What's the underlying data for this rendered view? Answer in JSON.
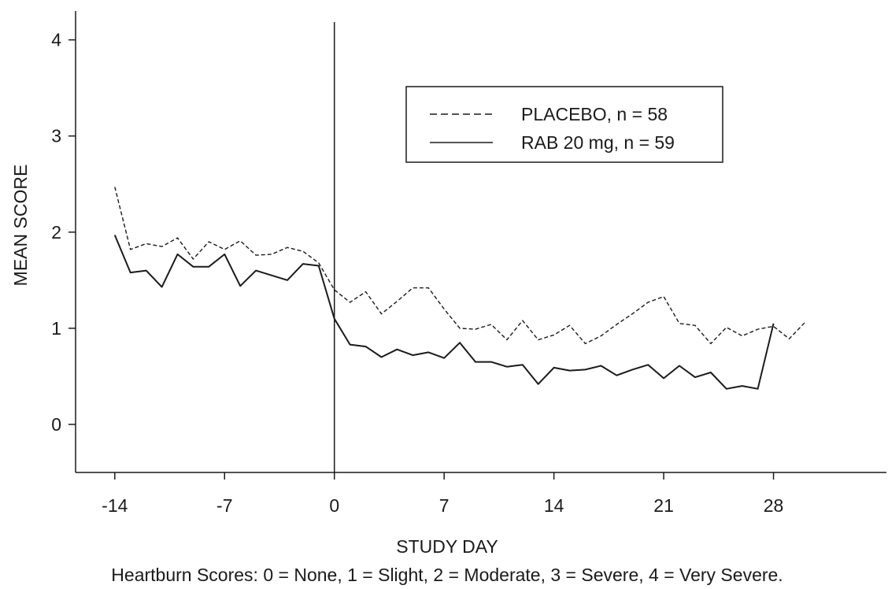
{
  "chart_data": {
    "type": "line",
    "title": "",
    "xlabel": "STUDY DAY",
    "ylabel": "MEAN SCORE",
    "caption": "Heartburn Scores: 0 = None, 1 = Slight, 2 = Moderate, 3 = Severe, 4 = Very Severe.",
    "xlim": [
      -16.5,
      35.2
    ],
    "ylim": [
      -0.5,
      4.3
    ],
    "xticks": [
      -14,
      -7,
      0,
      7,
      14,
      21,
      28
    ],
    "yticks": [
      0,
      1,
      2,
      3,
      4
    ],
    "reference_line_x": 0,
    "grid": false,
    "legend_position": "top-center",
    "series": [
      {
        "name": "PLACEBO, n = 58",
        "style": "dashed",
        "color": "#1a1a1a",
        "points": [
          [
            -14,
            2.47
          ],
          [
            -13,
            1.82
          ],
          [
            -12,
            1.88
          ],
          [
            -11,
            1.85
          ],
          [
            -10,
            1.94
          ],
          [
            -9,
            1.72
          ],
          [
            -8,
            1.9
          ],
          [
            -7,
            1.82
          ],
          [
            -6,
            1.91
          ],
          [
            -5,
            1.76
          ],
          [
            -4,
            1.77
          ],
          [
            -3,
            1.84
          ],
          [
            -2,
            1.8
          ],
          [
            -1,
            1.68
          ],
          [
            0,
            1.4
          ],
          [
            1,
            1.27
          ],
          [
            2,
            1.38
          ],
          [
            3,
            1.15
          ],
          [
            4,
            1.28
          ],
          [
            5,
            1.42
          ],
          [
            6,
            1.42
          ],
          [
            7,
            1.2
          ],
          [
            8,
            1.0
          ],
          [
            9,
            0.99
          ],
          [
            10,
            1.04
          ],
          [
            11,
            0.88
          ],
          [
            12,
            1.08
          ],
          [
            13,
            0.88
          ],
          [
            14,
            0.93
          ],
          [
            15,
            1.03
          ],
          [
            16,
            0.84
          ],
          [
            17,
            0.92
          ],
          [
            18,
            1.04
          ],
          [
            19,
            1.15
          ],
          [
            20,
            1.27
          ],
          [
            21,
            1.33
          ],
          [
            22,
            1.05
          ],
          [
            23,
            1.03
          ],
          [
            24,
            0.84
          ],
          [
            25,
            1.01
          ],
          [
            26,
            0.92
          ],
          [
            27,
            0.99
          ],
          [
            28,
            1.02
          ],
          [
            29,
            0.89
          ],
          [
            30,
            1.06
          ]
        ]
      },
      {
        "name": "RAB 20 mg, n = 59",
        "style": "solid",
        "color": "#1a1a1a",
        "points": [
          [
            -14,
            1.97
          ],
          [
            -13,
            1.58
          ],
          [
            -12,
            1.6
          ],
          [
            -11,
            1.43
          ],
          [
            -10,
            1.77
          ],
          [
            -9,
            1.64
          ],
          [
            -8,
            1.64
          ],
          [
            -7,
            1.77
          ],
          [
            -6,
            1.44
          ],
          [
            -5,
            1.6
          ],
          [
            -4,
            1.55
          ],
          [
            -3,
            1.5
          ],
          [
            -2,
            1.67
          ],
          [
            -1,
            1.65
          ],
          [
            0,
            1.1
          ],
          [
            1,
            0.83
          ],
          [
            2,
            0.81
          ],
          [
            3,
            0.7
          ],
          [
            4,
            0.78
          ],
          [
            5,
            0.72
          ],
          [
            6,
            0.75
          ],
          [
            7,
            0.69
          ],
          [
            8,
            0.85
          ],
          [
            9,
            0.65
          ],
          [
            10,
            0.65
          ],
          [
            11,
            0.6
          ],
          [
            12,
            0.62
          ],
          [
            13,
            0.42
          ],
          [
            14,
            0.59
          ],
          [
            15,
            0.56
          ],
          [
            16,
            0.57
          ],
          [
            17,
            0.61
          ],
          [
            18,
            0.51
          ],
          [
            19,
            0.57
          ],
          [
            20,
            0.62
          ],
          [
            21,
            0.48
          ],
          [
            22,
            0.61
          ],
          [
            23,
            0.49
          ],
          [
            24,
            0.54
          ],
          [
            25,
            0.37
          ],
          [
            26,
            0.4
          ],
          [
            27,
            0.37
          ],
          [
            28,
            1.05
          ]
        ]
      }
    ]
  }
}
